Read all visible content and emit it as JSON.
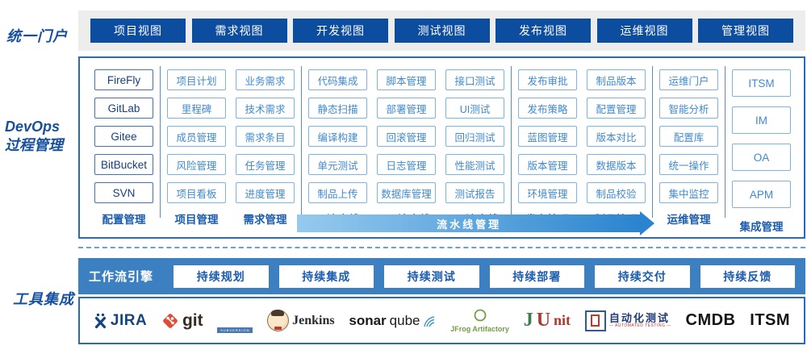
{
  "portal": {
    "label": "统一门户",
    "views": [
      "项目视图",
      "需求视图",
      "开发视图",
      "测试视图",
      "发布视图",
      "运维视图",
      "管理视图"
    ]
  },
  "process": {
    "label_line1": "DevOps",
    "label_line2": "过程管理",
    "pipeline_arrow_label": "流水线管理",
    "groups": [
      {
        "columns": [
          {
            "title": "配置管理",
            "variant": "dark",
            "items": [
              "FireFly",
              "GitLab",
              "Gitee",
              "BitBucket",
              "SVN"
            ]
          }
        ]
      },
      {
        "columns": [
          {
            "title": "项目管理",
            "items": [
              "项目计划",
              "里程碑",
              "成员管理",
              "风险管理",
              "项目看板"
            ]
          },
          {
            "title": "需求管理",
            "items": [
              "业务需求",
              "技术需求",
              "需求条目",
              "任务管理",
              "进度管理"
            ]
          }
        ]
      },
      {
        "columns": [
          {
            "title": "CI流水线",
            "items": [
              "代码集成",
              "静态扫描",
              "编译构建",
              "单元测试",
              "制品上传"
            ]
          },
          {
            "title": "CD流水线",
            "items": [
              "脚本管理",
              "部署管理",
              "回滚管理",
              "日志管理",
              "数据库管理"
            ]
          },
          {
            "title": "CT流水线",
            "items": [
              "接口测试",
              "UI测试",
              "回归测试",
              "性能测试",
              "测试报告"
            ]
          }
        ]
      },
      {
        "columns": [
          {
            "title": "发布管理",
            "items": [
              "发布审批",
              "发布策略",
              "蓝图管理",
              "版本管理",
              "环境管理"
            ]
          },
          {
            "title": "制品管理",
            "items": [
              "制品版本",
              "配置管理",
              "版本对比",
              "数据版本",
              "制品校验"
            ]
          }
        ]
      },
      {
        "columns": [
          {
            "title": "运维管理",
            "items": [
              "运维门户",
              "智能分析",
              "配置库",
              "统一操作",
              "集中监控"
            ]
          }
        ]
      },
      {
        "columns": [
          {
            "title": "集成管理",
            "variant": "tall",
            "items": [
              "ITSM",
              "IM",
              "OA",
              "APM"
            ]
          }
        ]
      }
    ]
  },
  "tools": {
    "label": "工具集成",
    "workflow_engine_label": "工作流引擎",
    "stages": [
      "持续规划",
      "持续集成",
      "持续测试",
      "持续部署",
      "持续交付",
      "持续反馈"
    ],
    "logos": [
      {
        "id": "jira",
        "text": "JIRA"
      },
      {
        "id": "git",
        "text": "git"
      },
      {
        "id": "svn",
        "text": "SUBVERSION"
      },
      {
        "id": "jenkins",
        "text": "Jenkins"
      },
      {
        "id": "sonarqube",
        "text_bold": "sonar",
        "text_light": "qube"
      },
      {
        "id": "jfrog",
        "text": "JFrog Artifactory"
      },
      {
        "id": "junit",
        "j": "J",
        "u": "U",
        "nit": "nit"
      },
      {
        "id": "autotest",
        "text": "自动化测试",
        "subtext": "— AUTOMATED TESTING —"
      },
      {
        "id": "cmdb",
        "text": "CMDB"
      },
      {
        "id": "itsm",
        "text": "ITSM"
      }
    ]
  },
  "colors": {
    "button_blue": "#0d4d9f",
    "box_border_blue": "#2c6ab2",
    "light_item_blue": "#7db4e4",
    "workflow_bar_blue": "#3c80c2",
    "arrow_gradient_start": "#96caee",
    "arrow_gradient_end": "#2b84cf",
    "label_blue": "#17509f"
  }
}
